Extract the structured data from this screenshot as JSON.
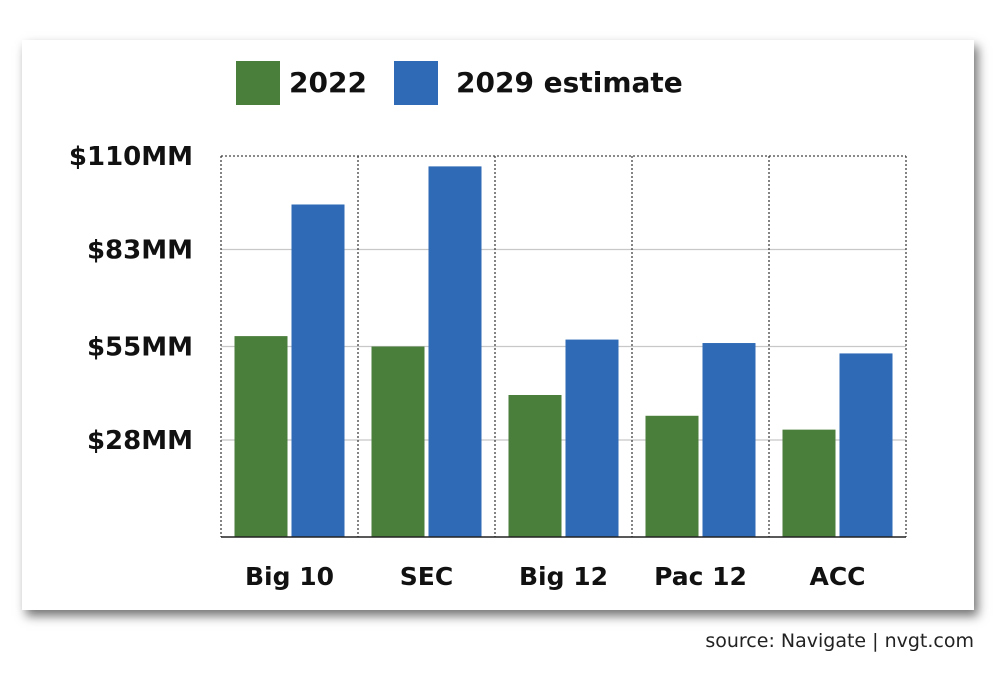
{
  "chart_data": {
    "type": "bar",
    "categories": [
      "Big 10",
      "SEC",
      "Big 12",
      "Pac 12",
      "ACC"
    ],
    "series": [
      {
        "name": "2022",
        "values": [
          58,
          55,
          41,
          35,
          31
        ],
        "color": "#4a7e3b"
      },
      {
        "name": "2029 estimate",
        "values": [
          96,
          107,
          57,
          56,
          53
        ],
        "color": "#2e6ab6"
      }
    ],
    "yticks": [
      {
        "value": 28,
        "label": "$28MM"
      },
      {
        "value": 55,
        "label": "$55MM"
      },
      {
        "value": 83,
        "label": "$83MM"
      },
      {
        "value": 110,
        "label": "$110MM"
      }
    ],
    "ylim": [
      0,
      110
    ],
    "grid": true,
    "legend": "top"
  },
  "source_text": "source: Navigate  |  nvgt.com"
}
